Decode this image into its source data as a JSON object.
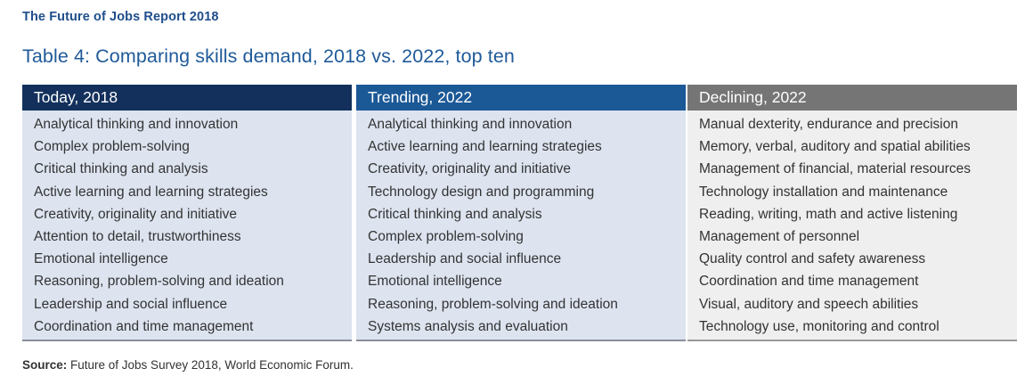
{
  "report_title": "The Future of Jobs Report 2018",
  "table_title": "Table 4: Comparing skills demand, 2018 vs. 2022, top ten",
  "columns": [
    {
      "header": "Today, 2018",
      "color": "#13305c",
      "items": [
        "Analytical thinking and innovation",
        "Complex problem-solving",
        "Critical thinking and analysis",
        "Active learning and learning strategies",
        "Creativity, originality and initiative",
        "Attention to detail, trustworthiness",
        "Emotional intelligence",
        "Reasoning, problem-solving and ideation",
        "Leadership and social influence",
        "Coordination and time management"
      ]
    },
    {
      "header": "Trending, 2022",
      "color": "#1b5896",
      "items": [
        "Analytical thinking and innovation",
        "Active learning and learning strategies",
        "Creativity, originality and initiative",
        "Technology design and programming",
        "Critical thinking and analysis",
        "Complex problem-solving",
        "Leadership and social influence",
        "Emotional intelligence",
        "Reasoning, problem-solving and ideation",
        "Systems analysis and evaluation"
      ]
    },
    {
      "header": "Declining, 2022",
      "color": "#757575",
      "items": [
        "Manual dexterity, endurance and precision",
        "Memory, verbal, auditory and spatial abilities",
        "Management of financial, material resources",
        "Technology installation and maintenance",
        "Reading, writing, math and active listening",
        "Management of personnel",
        "Quality control and safety awareness",
        "Coordination and time management",
        "Visual, auditory and speech abilities",
        "Technology use, monitoring and control"
      ]
    }
  ],
  "source": {
    "label": "Source:",
    "text": " Future of Jobs Survey 2018, World Economic Forum."
  }
}
